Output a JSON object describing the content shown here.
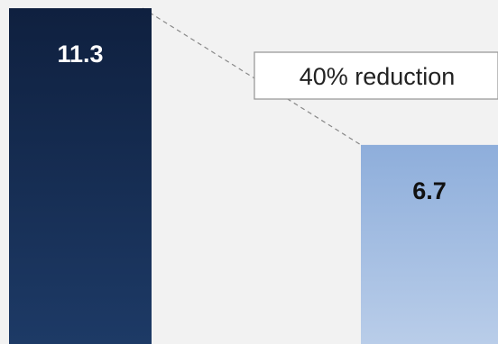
{
  "chart_data": {
    "type": "bar",
    "categories": [
      "",
      ""
    ],
    "values": [
      11.3,
      6.7
    ],
    "value_labels": [
      "11.3",
      "6.7"
    ],
    "annotation": "40% reduction",
    "colors": {
      "bar_1_top": "#0f203f",
      "bar_1_bottom": "#1d3a66",
      "bar_2_top": "#8eaedb",
      "bar_2_bottom": "#b9cde9",
      "background": "#f2f2f2",
      "connector": "#888888"
    },
    "grid": false,
    "legend": "none"
  }
}
